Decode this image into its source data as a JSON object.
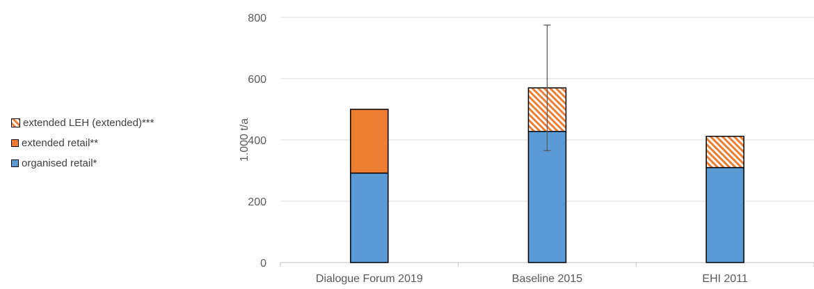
{
  "chart_data": {
    "type": "bar",
    "stacked": true,
    "title": "",
    "xlabel": "",
    "ylabel": "1.000 t/a",
    "ylim": [
      0,
      800
    ],
    "yticks": [
      0,
      200,
      400,
      600,
      800
    ],
    "grid": true,
    "legend_position": "left",
    "categories": [
      "Dialogue Forum 2019",
      "Baseline 2015",
      "EHI 2011"
    ],
    "series": [
      {
        "name": "organised retail*",
        "values": [
          292,
          428,
          310
        ],
        "color": "#5B9BD5",
        "pattern": "solid"
      },
      {
        "name": "extended retail**",
        "values": [
          208,
          0,
          0
        ],
        "color": "#ED7D31",
        "pattern": "solid"
      },
      {
        "name": "extended LEH (extended)***",
        "values": [
          0,
          142,
          102
        ],
        "color": "#ED7D31",
        "pattern": "hatched"
      }
    ],
    "error_bars": [
      {
        "category": "Baseline 2015",
        "low": 365,
        "high": 775
      }
    ],
    "legend_order": [
      "extended LEH (extended)***",
      "extended retail**",
      "organised retail*"
    ]
  }
}
